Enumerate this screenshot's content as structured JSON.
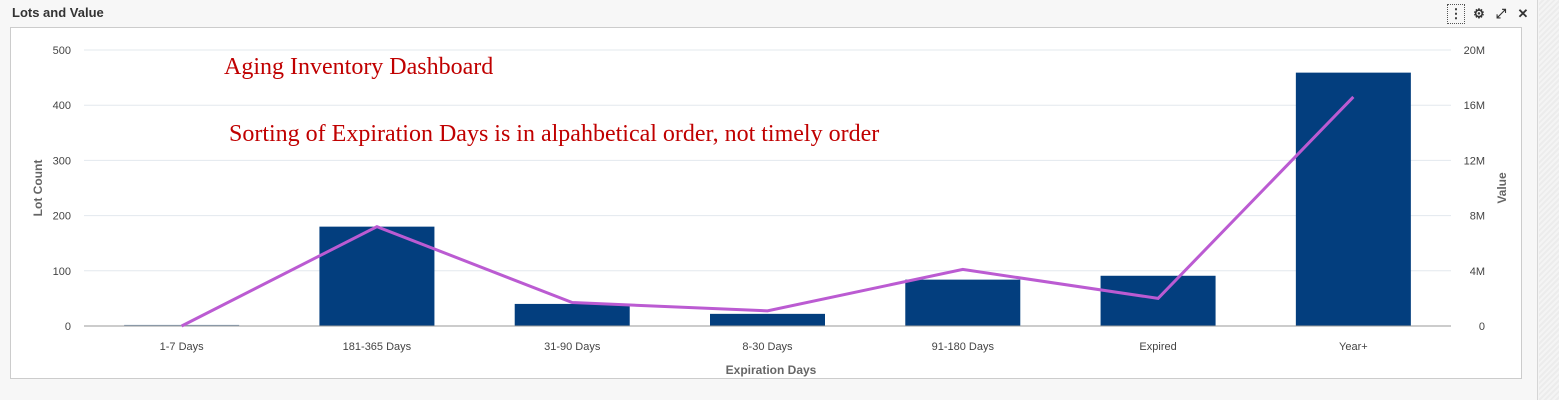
{
  "panel": {
    "title": "Lots and Value",
    "toolbar": [
      {
        "name": "menu-icon",
        "glyph": "⋮"
      },
      {
        "name": "gear-icon",
        "glyph": "⚙"
      },
      {
        "name": "expand-icon",
        "glyph": "⤢"
      },
      {
        "name": "close-icon",
        "glyph": "✕"
      }
    ]
  },
  "annotations": {
    "title": "Aging Inventory Dashboard",
    "note": "Sorting of Expiration Days is in alpahbetical order, not timely order",
    "color": "#c00000"
  },
  "colors": {
    "bar": "#033e7e",
    "line": "#bb5bd2",
    "grid": "#e3e8ee",
    "axis_text": "#444444",
    "axis_title": "#666666"
  },
  "chart_data": {
    "type": "bar",
    "title": "Lots and Value",
    "xlabel": "Expiration Days",
    "ylabel": "Lot Count",
    "y2label": "Value",
    "categories": [
      "1-7 Days",
      "181-365 Days",
      "31-90 Days",
      "8-30 Days",
      "91-180 Days",
      "Expired",
      "Year+"
    ],
    "series": [
      {
        "name": "Lot Count",
        "type": "bar",
        "axis": "left",
        "values": [
          2,
          180,
          40,
          22,
          84,
          91,
          459
        ]
      },
      {
        "name": "Value",
        "type": "line",
        "axis": "right",
        "values": [
          0,
          7200000,
          1700000,
          1100000,
          4100000,
          2000000,
          16600000
        ]
      }
    ],
    "ylim": [
      0,
      500
    ],
    "y2lim": [
      0,
      20000000
    ],
    "yticks": [
      "0",
      "100",
      "200",
      "300",
      "400",
      "500"
    ],
    "y2ticks": [
      "0",
      "4M",
      "8M",
      "12M",
      "16M",
      "20M"
    ],
    "grid": true,
    "legend": "none"
  }
}
